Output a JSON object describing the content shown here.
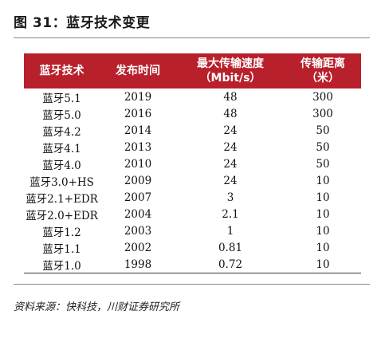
{
  "figure": {
    "title": "图 31：蓝牙技术变更"
  },
  "table": {
    "headers": [
      {
        "line1": "蓝牙技术",
        "line2": ""
      },
      {
        "line1": "发布时间",
        "line2": ""
      },
      {
        "line1": "最大传输速度",
        "line2": "（Mbit/s）"
      },
      {
        "line1": "传输距离",
        "line2": "（米）"
      }
    ],
    "rows": [
      [
        "蓝牙5.1",
        "2019",
        "48",
        "300"
      ],
      [
        "蓝牙5.0",
        "2016",
        "48",
        "300"
      ],
      [
        "蓝牙4.2",
        "2014",
        "24",
        "50"
      ],
      [
        "蓝牙4.1",
        "2013",
        "24",
        "50"
      ],
      [
        "蓝牙4.0",
        "2010",
        "24",
        "50"
      ],
      [
        "蓝牙3.0+HS",
        "2009",
        "24",
        "10"
      ],
      [
        "蓝牙2.1+EDR",
        "2007",
        "3",
        "10"
      ],
      [
        "蓝牙2.0+EDR",
        "2004",
        "2.1",
        "10"
      ],
      [
        "蓝牙1.2",
        "2003",
        "1",
        "10"
      ],
      [
        "蓝牙1.1",
        "2002",
        "0.81",
        "10"
      ],
      [
        "蓝牙1.0",
        "1998",
        "0.72",
        "10"
      ]
    ]
  },
  "source": "资料来源：快科技，川财证券研究所",
  "colors": {
    "header_bg": "#b8202b",
    "header_text": "#ffffff"
  }
}
